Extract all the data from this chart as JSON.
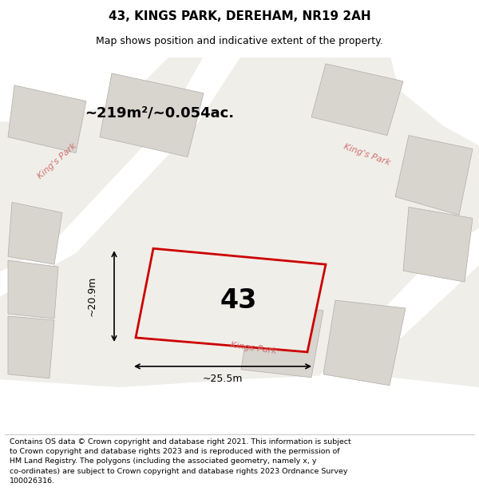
{
  "title": "43, KINGS PARK, DEREHAM, NR19 2AH",
  "subtitle": "Map shows position and indicative extent of the property.",
  "area_text": "~219m²/~0.054ac.",
  "number_label": "43",
  "dim_width": "~25.5m",
  "dim_height": "~20.9m",
  "footer_text": "Contains OS data © Crown copyright and database right 2021. This information is subject\nto Crown copyright and database rights 2023 and is reproduced with the permission of\nHM Land Registry. The polygons (including the associated geometry, namely x, y\nco-ordinates) are subject to Crown copyright and database rights 2023 Ordnance Survey\n100026316.",
  "map_bg": "#f0eee9",
  "road_color": "#ffffff",
  "building_color": "#d8d4ce",
  "highlight_color": "#cc0000",
  "road_label_color": "#d07070",
  "text_color": "#000000"
}
